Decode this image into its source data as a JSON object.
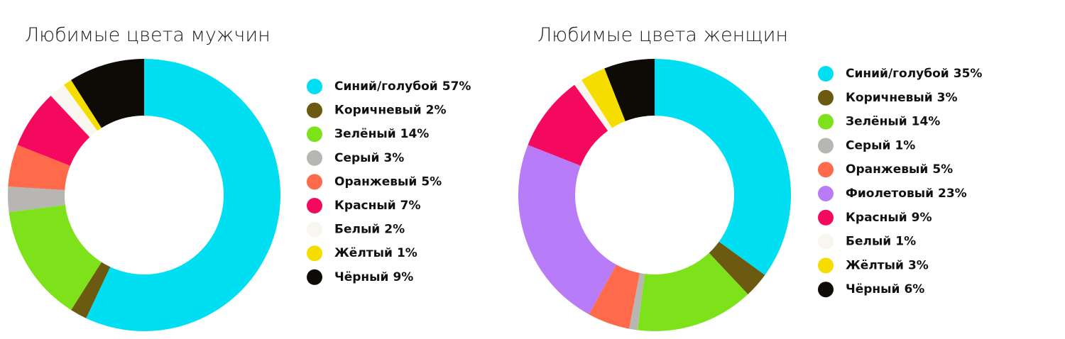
{
  "chart_data": [
    {
      "type": "pie",
      "title": "Любимые цвета мужчин",
      "categories": [
        "Синий/голубой",
        "Коричневый",
        "Зелёный",
        "Серый",
        "Оранжевый",
        "Красный",
        "Белый",
        "Жёлтый",
        "Чёрный"
      ],
      "values": [
        57,
        2,
        14,
        3,
        5,
        7,
        2,
        1,
        9
      ],
      "value_labels": [
        "57%",
        "2%",
        "14%",
        "3%",
        "5%",
        "7%",
        "2%",
        "1%",
        "9%"
      ],
      "colors": [
        "#00def2",
        "#6b5a10",
        "#7de21a",
        "#b8b6b2",
        "#fe6a4a",
        "#f5095e",
        "#f8f6ee",
        "#f5dd00",
        "#0e0b07"
      ]
    },
    {
      "type": "pie",
      "title": "Любимые цвета женщин",
      "categories": [
        "Синий/голубой",
        "Коричневый",
        "Зелёный",
        "Серый",
        "Оранжевый",
        "Фиолетовый",
        "Красный",
        "Белый",
        "Жёлтый",
        "Чёрный"
      ],
      "values": [
        35,
        3,
        14,
        1,
        5,
        23,
        9,
        1,
        3,
        6
      ],
      "value_labels": [
        "35%",
        "3%",
        "14%",
        "1%",
        "5%",
        "23%",
        "9%",
        "1%",
        "3%",
        "6%"
      ],
      "colors": [
        "#00def2",
        "#6b5a10",
        "#7de21a",
        "#b8b6b2",
        "#fe6a4a",
        "#b87cf9",
        "#f5095e",
        "#f8f6ee",
        "#f5dd00",
        "#0e0b07"
      ]
    }
  ]
}
